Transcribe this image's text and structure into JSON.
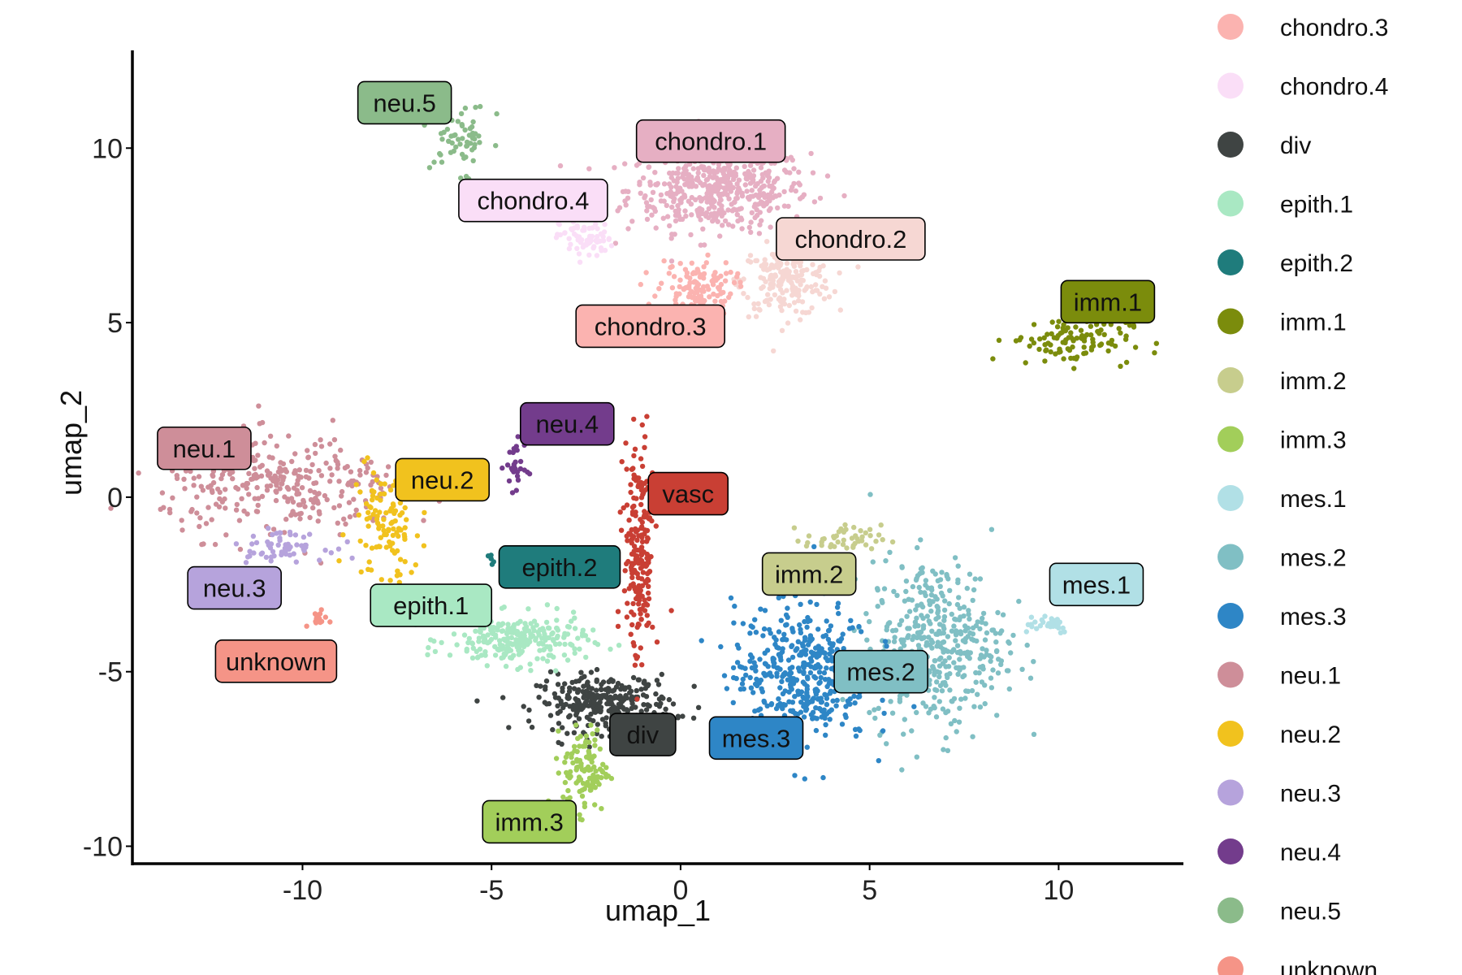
{
  "chart_data": {
    "type": "scatter",
    "title": "",
    "xlabel": "umap_1",
    "ylabel": "umap_2",
    "xlim": [
      -14.5,
      13.3
    ],
    "ylim": [
      -10.5,
      12.8
    ],
    "xticks": [
      -10,
      -5,
      0,
      5,
      10
    ],
    "yticks": [
      -10,
      -5,
      0,
      5,
      10
    ],
    "tick_labels_x": [
      "-10",
      "-5",
      "0",
      "5",
      "10"
    ],
    "tick_labels_y": [
      "-10",
      "-5",
      "0",
      "5",
      "10"
    ],
    "grid": false,
    "legend_position": "right",
    "clusters": [
      {
        "name": "chondro.1",
        "color": "#E6AFC3",
        "center": [
          1.0,
          8.8
        ],
        "spread": [
          1.2,
          0.6
        ],
        "n": 480,
        "label_pos": [
          0.8,
          10.2
        ]
      },
      {
        "name": "chondro.2",
        "color": "#F6D7D3",
        "center": [
          2.8,
          6.2
        ],
        "spread": [
          0.6,
          0.5
        ],
        "n": 200,
        "label_pos": [
          4.5,
          7.4
        ]
      },
      {
        "name": "chondro.3",
        "color": "#FBB3B0",
        "center": [
          0.4,
          6.0
        ],
        "spread": [
          0.5,
          0.4
        ],
        "n": 130,
        "label_pos": [
          -0.8,
          4.9
        ]
      },
      {
        "name": "chondro.4",
        "color": "#FADEF7",
        "center": [
          -2.5,
          7.4
        ],
        "spread": [
          0.35,
          0.3
        ],
        "n": 70,
        "label_pos": [
          -3.9,
          8.5
        ]
      },
      {
        "name": "div",
        "color": "#3F4443",
        "center": [
          -2.0,
          -5.9
        ],
        "spread": [
          0.9,
          0.4
        ],
        "n": 300,
        "label_pos": [
          -1.0,
          -6.8
        ]
      },
      {
        "name": "epith.1",
        "color": "#A9E8C3",
        "center": [
          -4.3,
          -4.1
        ],
        "spread": [
          0.9,
          0.35
        ],
        "n": 250,
        "label_pos": [
          -6.6,
          -3.1
        ]
      },
      {
        "name": "epith.2",
        "color": "#1F7C7C",
        "center": [
          -5.0,
          -1.8
        ],
        "spread": [
          0.05,
          0.1
        ],
        "n": 5,
        "label_pos": [
          -3.2,
          -2.0
        ]
      },
      {
        "name": "imm.1",
        "color": "#7B8C0C",
        "center": [
          10.3,
          4.5
        ],
        "spread": [
          0.8,
          0.35
        ],
        "n": 110,
        "label_pos": [
          11.3,
          5.6
        ]
      },
      {
        "name": "imm.2",
        "color": "#C7CD8D",
        "center": [
          4.3,
          -1.2
        ],
        "spread": [
          0.5,
          0.2
        ],
        "n": 45,
        "label_pos": [
          3.4,
          -2.2
        ]
      },
      {
        "name": "imm.3",
        "color": "#A2CE5A",
        "center": [
          -2.5,
          -7.8
        ],
        "spread": [
          0.3,
          0.6
        ],
        "n": 110,
        "label_pos": [
          -4.0,
          -9.3
        ]
      },
      {
        "name": "mes.1",
        "color": "#B1E0E6",
        "center": [
          9.6,
          -3.6
        ],
        "spread": [
          0.4,
          0.15
        ],
        "n": 30,
        "label_pos": [
          11.0,
          -2.5
        ]
      },
      {
        "name": "mes.2",
        "color": "#80BFC4",
        "center": [
          6.8,
          -4.2
        ],
        "spread": [
          0.9,
          1.2
        ],
        "n": 420,
        "label_pos": [
          5.3,
          -5.0
        ]
      },
      {
        "name": "mes.3",
        "color": "#2E86C6",
        "center": [
          3.2,
          -5.0
        ],
        "spread": [
          0.9,
          1.0
        ],
        "n": 440,
        "label_pos": [
          2.0,
          -6.9
        ]
      },
      {
        "name": "neu.1",
        "color": "#CE8E99",
        "center": [
          -10.5,
          0.3
        ],
        "spread": [
          1.6,
          0.7
        ],
        "n": 300,
        "label_pos": [
          -12.6,
          1.4
        ]
      },
      {
        "name": "neu.2",
        "color": "#F1C21E",
        "center": [
          -7.8,
          -0.8
        ],
        "spread": [
          0.45,
          0.9
        ],
        "n": 110,
        "label_pos": [
          -6.3,
          0.5
        ]
      },
      {
        "name": "neu.3",
        "color": "#B6A3DC",
        "center": [
          -10.6,
          -1.4
        ],
        "spread": [
          0.6,
          0.2
        ],
        "n": 60,
        "label_pos": [
          -11.8,
          -2.6
        ]
      },
      {
        "name": "neu.4",
        "color": "#733C8C",
        "center": [
          -4.3,
          0.9
        ],
        "spread": [
          0.15,
          0.4
        ],
        "n": 30,
        "label_pos": [
          -3.0,
          2.1
        ]
      },
      {
        "name": "neu.5",
        "color": "#8BBB8A",
        "center": [
          -5.8,
          10.3
        ],
        "spread": [
          0.4,
          0.5
        ],
        "n": 60,
        "label_pos": [
          -7.3,
          11.3
        ]
      },
      {
        "name": "unknown",
        "color": "#F59487",
        "center": [
          -9.6,
          -3.5
        ],
        "spread": [
          0.12,
          0.1
        ],
        "n": 15,
        "label_pos": [
          -10.7,
          -4.7
        ]
      },
      {
        "name": "vasc",
        "color": "#C93F34",
        "center": [
          -1.1,
          -1.7
        ],
        "spread": [
          0.2,
          1.7
        ],
        "n": 210,
        "label_pos": [
          0.2,
          0.1
        ]
      }
    ],
    "legend": [
      {
        "label": "chondro.3",
        "color": "#FBB3B0"
      },
      {
        "label": "chondro.4",
        "color": "#FADEF7"
      },
      {
        "label": "div",
        "color": "#3F4443"
      },
      {
        "label": "epith.1",
        "color": "#A9E8C3"
      },
      {
        "label": "epith.2",
        "color": "#1F7C7C"
      },
      {
        "label": "imm.1",
        "color": "#7B8C0C"
      },
      {
        "label": "imm.2",
        "color": "#C7CD8D"
      },
      {
        "label": "imm.3",
        "color": "#A2CE5A"
      },
      {
        "label": "mes.1",
        "color": "#B1E0E6"
      },
      {
        "label": "mes.2",
        "color": "#80BFC4"
      },
      {
        "label": "mes.3",
        "color": "#2E86C6"
      },
      {
        "label": "neu.1",
        "color": "#CE8E99"
      },
      {
        "label": "neu.2",
        "color": "#F1C21E"
      },
      {
        "label": "neu.3",
        "color": "#B6A3DC"
      },
      {
        "label": "neu.4",
        "color": "#733C8C"
      },
      {
        "label": "neu.5",
        "color": "#8BBB8A"
      },
      {
        "label": "unknown",
        "color": "#F59487"
      }
    ]
  }
}
